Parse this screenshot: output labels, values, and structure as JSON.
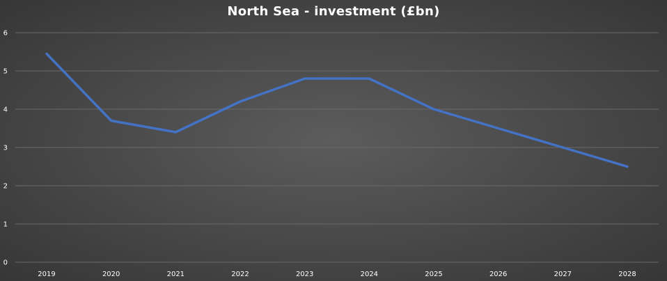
{
  "chart_data": {
    "type": "line",
    "title": "North Sea - investment (£bn)",
    "xlabel": "",
    "ylabel": "",
    "categories": [
      "2019",
      "2020",
      "2021",
      "2022",
      "2023",
      "2024",
      "2025",
      "2026",
      "2027",
      "2028"
    ],
    "series": [
      {
        "values": [
          5.45,
          3.7,
          3.4,
          4.2,
          4.8,
          4.8,
          4.0,
          3.5,
          3.0,
          2.5
        ],
        "color": "#4472c4"
      }
    ],
    "ylim": [
      0,
      6
    ],
    "yticks": [
      "0",
      "1",
      "2",
      "3",
      "4",
      "5",
      "6"
    ],
    "grid": true,
    "legend": "none"
  }
}
